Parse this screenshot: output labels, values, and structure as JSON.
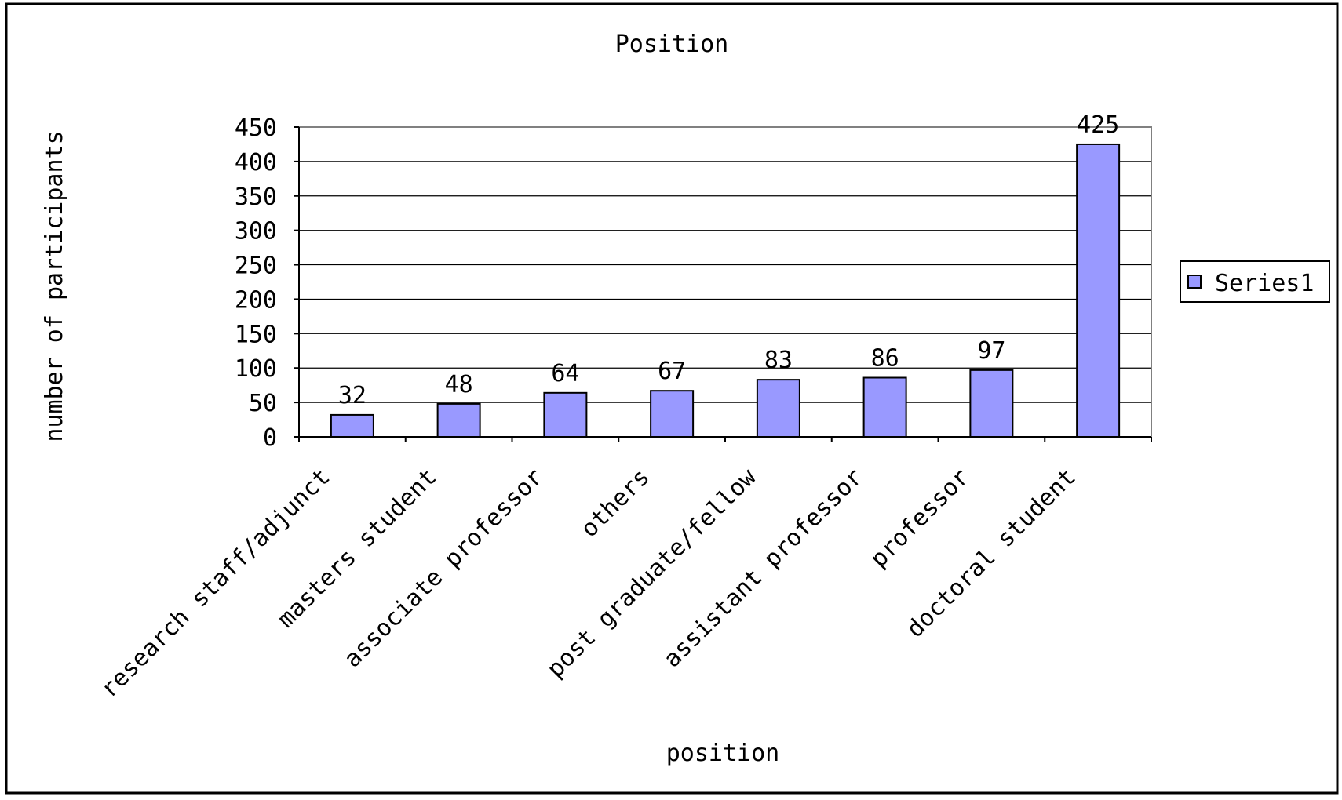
{
  "chart_data": {
    "type": "bar",
    "title": "Position",
    "xlabel": "position",
    "ylabel": "number of participants",
    "categories": [
      "research staff/adjunct",
      "masters student",
      "associate professor",
      "others",
      "post graduate/fellow",
      "assistant professor",
      "professor",
      "doctoral student"
    ],
    "series": [
      {
        "name": "Series1",
        "values": [
          32,
          48,
          64,
          67,
          83,
          86,
          97,
          425
        ]
      }
    ],
    "ylim": [
      0,
      450
    ],
    "yticks": [
      0,
      50,
      100,
      150,
      200,
      250,
      300,
      350,
      400,
      450
    ],
    "grid": true,
    "data_labels": true,
    "legend_position": "right",
    "bar_color": "#9999ff",
    "border_color": "#000000"
  }
}
